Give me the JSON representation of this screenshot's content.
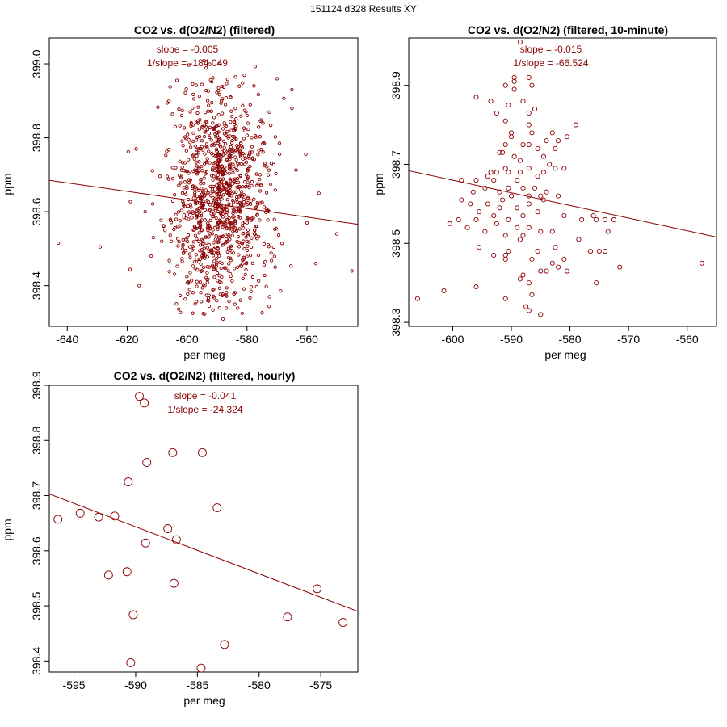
{
  "suptitle": "151124   d328   Results XY",
  "panels": [
    {
      "title": "CO2 vs. d(O2/N2) (filtered)",
      "xlabel": "per meg",
      "ylabel": "ppm",
      "slope_text": "slope = -0.005",
      "inv_slope_text": "1/slope = -184.049"
    },
    {
      "title": "CO2 vs. d(O2/N2) (filtered, 10-minute)",
      "xlabel": "per meg",
      "ylabel": "ppm",
      "slope_text": "slope = -0.015",
      "inv_slope_text": "1/slope = -66.524"
    },
    {
      "title": "CO2 vs. d(O2/N2) (filtered, hourly)",
      "xlabel": "per meg",
      "ylabel": "ppm",
      "slope_text": "slope = -0.041",
      "inv_slope_text": "1/slope = -24.324"
    }
  ],
  "chart_data": [
    {
      "type": "scatter",
      "title": "CO2 vs. d(O2/N2) (filtered)",
      "xlabel": "per meg",
      "ylabel": "ppm",
      "xlim": [
        -646,
        -543
      ],
      "ylim": [
        398.29,
        399.07
      ],
      "xticks": [
        -640,
        -620,
        -600,
        -580,
        -560
      ],
      "yticks": [
        398.4,
        398.6,
        398.8,
        399.0
      ],
      "point_color": "#8b0000",
      "fit_line": {
        "x": [
          -646,
          -543
        ],
        "y": [
          398.685,
          398.566
        ]
      },
      "cloud": {
        "n": 1100,
        "x_center": -589,
        "x_spread": 7.5,
        "y_center": 398.64,
        "y_spread": 0.15,
        "seed": 7
      },
      "points": [
        {
          "x": -643,
          "y": 398.515
        },
        {
          "x": -629,
          "y": 398.505
        },
        {
          "x": -617,
          "y": 398.77
        },
        {
          "x": -616,
          "y": 398.4
        },
        {
          "x": -614,
          "y": 398.6
        },
        {
          "x": -612,
          "y": 398.48
        },
        {
          "x": -606,
          "y": 398.9
        },
        {
          "x": -604,
          "y": 398.83
        },
        {
          "x": -570,
          "y": 398.96
        },
        {
          "x": -565,
          "y": 398.93
        },
        {
          "x": -565,
          "y": 398.88
        },
        {
          "x": -560,
          "y": 398.57
        },
        {
          "x": -557,
          "y": 398.46
        },
        {
          "x": -556,
          "y": 398.65
        },
        {
          "x": -550,
          "y": 398.54
        },
        {
          "x": -545,
          "y": 398.44
        },
        {
          "x": -589,
          "y": 399.0
        },
        {
          "x": -588,
          "y": 398.31
        }
      ]
    },
    {
      "type": "scatter",
      "title": "CO2 vs. d(O2/N2) (filtered, 10-minute)",
      "xlabel": "per meg",
      "ylabel": "ppm",
      "xlim": [
        -607.5,
        -555
      ],
      "ylim": [
        398.29,
        399.02
      ],
      "xticks": [
        -600,
        -590,
        -580,
        -570,
        -560
      ],
      "yticks": [
        398.3,
        398.5,
        398.7,
        398.9
      ],
      "point_color": "#8b0000",
      "fit_line": {
        "x": [
          -607.5,
          -555
        ],
        "y": [
          398.684,
          398.516
        ]
      },
      "points": [
        {
          "x": -588.5,
          "y": 399.01
        },
        {
          "x": -596,
          "y": 398.87
        },
        {
          "x": -593.5,
          "y": 398.86
        },
        {
          "x": -589.5,
          "y": 398.92
        },
        {
          "x": -589.5,
          "y": 398.91
        },
        {
          "x": -587,
          "y": 398.92
        },
        {
          "x": -588,
          "y": 398.86
        },
        {
          "x": -591,
          "y": 398.9
        },
        {
          "x": -589.5,
          "y": 398.89
        },
        {
          "x": -586.5,
          "y": 398.9
        },
        {
          "x": -586,
          "y": 398.84
        },
        {
          "x": -587,
          "y": 398.83
        },
        {
          "x": -590.5,
          "y": 398.85
        },
        {
          "x": -592.5,
          "y": 398.83
        },
        {
          "x": -590,
          "y": 398.77
        },
        {
          "x": -590,
          "y": 398.78
        },
        {
          "x": -591,
          "y": 398.81
        },
        {
          "x": -587,
          "y": 398.8
        },
        {
          "x": -586.5,
          "y": 398.78
        },
        {
          "x": -583,
          "y": 398.78
        },
        {
          "x": -579,
          "y": 398.8
        },
        {
          "x": -580.5,
          "y": 398.77
        },
        {
          "x": -582,
          "y": 398.76
        },
        {
          "x": -584,
          "y": 398.76
        },
        {
          "x": -585.5,
          "y": 398.74
        },
        {
          "x": -587,
          "y": 398.75
        },
        {
          "x": -588,
          "y": 398.75
        },
        {
          "x": -591,
          "y": 398.75
        },
        {
          "x": -591.5,
          "y": 398.73
        },
        {
          "x": -592,
          "y": 398.73
        },
        {
          "x": -589.5,
          "y": 398.72
        },
        {
          "x": -588.5,
          "y": 398.71
        },
        {
          "x": -584.5,
          "y": 398.72
        },
        {
          "x": -582.5,
          "y": 398.74
        },
        {
          "x": -583.5,
          "y": 398.7
        },
        {
          "x": -587,
          "y": 398.69
        },
        {
          "x": -588.5,
          "y": 398.68
        },
        {
          "x": -590.5,
          "y": 398.68
        },
        {
          "x": -591,
          "y": 398.69
        },
        {
          "x": -592.5,
          "y": 398.68
        },
        {
          "x": -593.5,
          "y": 398.68
        },
        {
          "x": -594,
          "y": 398.67
        },
        {
          "x": -596,
          "y": 398.66
        },
        {
          "x": -598.5,
          "y": 398.66
        },
        {
          "x": -593,
          "y": 398.66
        },
        {
          "x": -589,
          "y": 398.66
        },
        {
          "x": -585.5,
          "y": 398.67
        },
        {
          "x": -584.5,
          "y": 398.68
        },
        {
          "x": -582.5,
          "y": 398.69
        },
        {
          "x": -581,
          "y": 398.69
        },
        {
          "x": -586,
          "y": 398.64
        },
        {
          "x": -588,
          "y": 398.64
        },
        {
          "x": -590.5,
          "y": 398.64
        },
        {
          "x": -592,
          "y": 398.63
        },
        {
          "x": -594.5,
          "y": 398.64
        },
        {
          "x": -596.5,
          "y": 398.63
        },
        {
          "x": -590,
          "y": 398.62
        },
        {
          "x": -591.5,
          "y": 398.61
        },
        {
          "x": -587,
          "y": 398.62
        },
        {
          "x": -585,
          "y": 398.62
        },
        {
          "x": -584,
          "y": 398.63
        },
        {
          "x": -582,
          "y": 398.62
        },
        {
          "x": -584.5,
          "y": 398.61
        },
        {
          "x": -587,
          "y": 398.6
        },
        {
          "x": -589,
          "y": 398.59
        },
        {
          "x": -592,
          "y": 398.59
        },
        {
          "x": -594,
          "y": 398.6
        },
        {
          "x": -595.5,
          "y": 398.58
        },
        {
          "x": -597,
          "y": 398.6
        },
        {
          "x": -598.5,
          "y": 398.61
        },
        {
          "x": -599,
          "y": 398.56
        },
        {
          "x": -596,
          "y": 398.56
        },
        {
          "x": -593,
          "y": 398.57
        },
        {
          "x": -590.5,
          "y": 398.56
        },
        {
          "x": -588,
          "y": 398.57
        },
        {
          "x": -585.5,
          "y": 398.58
        },
        {
          "x": -581,
          "y": 398.57
        },
        {
          "x": -578,
          "y": 398.56
        },
        {
          "x": -576,
          "y": 398.57
        },
        {
          "x": -574,
          "y": 398.56
        },
        {
          "x": -572.5,
          "y": 398.56
        },
        {
          "x": -573.5,
          "y": 398.53
        },
        {
          "x": -575.5,
          "y": 398.56
        },
        {
          "x": -600.5,
          "y": 398.55
        },
        {
          "x": -597.5,
          "y": 398.54
        },
        {
          "x": -594.5,
          "y": 398.53
        },
        {
          "x": -592.5,
          "y": 398.55
        },
        {
          "x": -589,
          "y": 398.54
        },
        {
          "x": -587,
          "y": 398.54
        },
        {
          "x": -585,
          "y": 398.53
        },
        {
          "x": -583,
          "y": 398.53
        },
        {
          "x": -588,
          "y": 398.52
        },
        {
          "x": -588.5,
          "y": 398.51
        },
        {
          "x": -591,
          "y": 398.52
        },
        {
          "x": -578.5,
          "y": 398.51
        },
        {
          "x": -576.5,
          "y": 398.48
        },
        {
          "x": -575,
          "y": 398.48
        },
        {
          "x": -574,
          "y": 398.48
        },
        {
          "x": -582.5,
          "y": 398.49
        },
        {
          "x": -585.5,
          "y": 398.48
        },
        {
          "x": -590.5,
          "y": 398.48
        },
        {
          "x": -593,
          "y": 398.47
        },
        {
          "x": -595.5,
          "y": 398.49
        },
        {
          "x": -591,
          "y": 398.46
        },
        {
          "x": -591,
          "y": 398.47
        },
        {
          "x": -586.5,
          "y": 398.46
        },
        {
          "x": -583,
          "y": 398.45
        },
        {
          "x": -582,
          "y": 398.44
        },
        {
          "x": -581,
          "y": 398.46
        },
        {
          "x": -584,
          "y": 398.43
        },
        {
          "x": -585,
          "y": 398.43
        },
        {
          "x": -588,
          "y": 398.42
        },
        {
          "x": -588.5,
          "y": 398.41
        },
        {
          "x": -587,
          "y": 398.4
        },
        {
          "x": -580.5,
          "y": 398.43
        },
        {
          "x": -575.5,
          "y": 398.4
        },
        {
          "x": -571.5,
          "y": 398.44
        },
        {
          "x": -596,
          "y": 398.39
        },
        {
          "x": -601.5,
          "y": 398.38
        },
        {
          "x": -606,
          "y": 398.36
        },
        {
          "x": -591,
          "y": 398.36
        },
        {
          "x": -586.5,
          "y": 398.37
        },
        {
          "x": -587.5,
          "y": 398.34
        },
        {
          "x": -587,
          "y": 398.33
        },
        {
          "x": -585,
          "y": 398.32
        },
        {
          "x": -557.5,
          "y": 398.45
        }
      ]
    },
    {
      "type": "scatter",
      "title": "CO2 vs. d(O2/N2) (filtered, hourly)",
      "xlabel": "per meg",
      "ylabel": "ppm",
      "xlim": [
        -597,
        -572
      ],
      "ylim": [
        398.38,
        398.9
      ],
      "xticks": [
        -595,
        -590,
        -585,
        -580,
        -575
      ],
      "yticks": [
        398.4,
        398.5,
        398.6,
        398.7,
        398.8,
        398.9
      ],
      "point_color": "#8b0000",
      "fit_line": {
        "x": [
          -597,
          -572
        ],
        "y": [
          398.703,
          398.49
        ]
      },
      "points": [
        {
          "x": -596.3,
          "y": 398.657
        },
        {
          "x": -594.5,
          "y": 398.668
        },
        {
          "x": -593.0,
          "y": 398.661
        },
        {
          "x": -591.7,
          "y": 398.663
        },
        {
          "x": -592.2,
          "y": 398.556
        },
        {
          "x": -590.6,
          "y": 398.725
        },
        {
          "x": -590.7,
          "y": 398.562
        },
        {
          "x": -590.2,
          "y": 398.484
        },
        {
          "x": -590.4,
          "y": 398.397
        },
        {
          "x": -589.7,
          "y": 398.88
        },
        {
          "x": -589.3,
          "y": 398.868
        },
        {
          "x": -589.1,
          "y": 398.76
        },
        {
          "x": -589.2,
          "y": 398.614
        },
        {
          "x": -587.4,
          "y": 398.64
        },
        {
          "x": -587.0,
          "y": 398.778
        },
        {
          "x": -586.9,
          "y": 398.541
        },
        {
          "x": -586.7,
          "y": 398.62
        },
        {
          "x": -584.6,
          "y": 398.778
        },
        {
          "x": -584.7,
          "y": 398.387
        },
        {
          "x": -583.4,
          "y": 398.678
        },
        {
          "x": -582.8,
          "y": 398.43
        },
        {
          "x": -577.7,
          "y": 398.48
        },
        {
          "x": -575.3,
          "y": 398.531
        },
        {
          "x": -573.2,
          "y": 398.47
        }
      ]
    }
  ]
}
